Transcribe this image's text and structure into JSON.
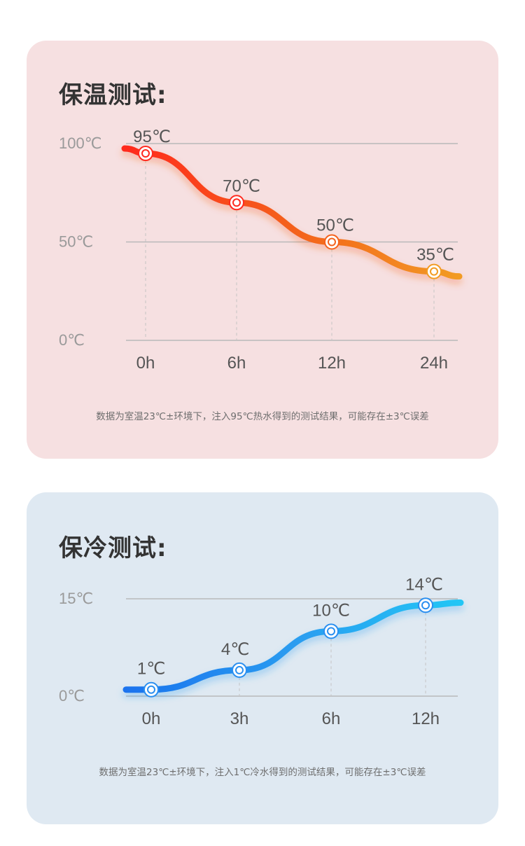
{
  "cards": [
    {
      "title": "保温测试:",
      "footnote": "数据为室温23℃±环境下，注入95℃热水得到的测试结果，可能存在±3℃误差"
    },
    {
      "title": "保冷测试:",
      "footnote": "数据为室温23℃±环境下，注入1℃冷水得到的测试结果，可能存在±3℃误差"
    }
  ],
  "chart_data": [
    {
      "type": "line",
      "categories": [
        "0h",
        "6h",
        "12h",
        "24h"
      ],
      "series": [
        {
          "values": [
            95,
            70,
            50,
            35
          ]
        }
      ],
      "data_labels": [
        "95℃",
        "70℃",
        "50℃",
        "35℃"
      ],
      "y_ticks": [
        100,
        50,
        0
      ],
      "y_tick_labels": [
        "100℃",
        "50℃",
        "0℃"
      ],
      "ylim": [
        0,
        100
      ],
      "grid": true,
      "colors": {
        "start": "#ff2a1f",
        "mid": "#f4611d",
        "end": "#f29b22",
        "axis": "#b9b9b9",
        "label": "#555555"
      }
    },
    {
      "type": "line",
      "categories": [
        "0h",
        "3h",
        "6h",
        "12h"
      ],
      "series": [
        {
          "values": [
            1,
            4,
            10,
            14
          ]
        }
      ],
      "data_labels": [
        "1℃",
        "4℃",
        "10℃",
        "14℃"
      ],
      "y_ticks": [
        15,
        0
      ],
      "y_tick_labels": [
        "15℃",
        "0℃"
      ],
      "ylim": [
        0,
        15
      ],
      "grid": true,
      "colors": {
        "start": "#1a73ee",
        "mid": "#2a9cf0",
        "end": "#22c6f5",
        "axis": "#b9b9b9",
        "label": "#555555"
      }
    }
  ]
}
